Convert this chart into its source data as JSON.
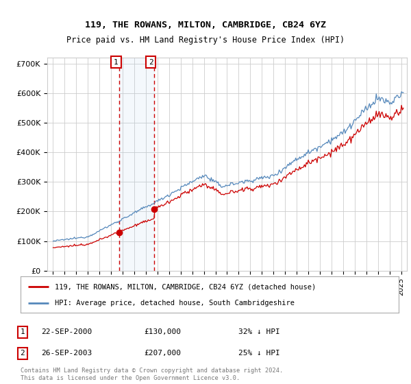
{
  "title1": "119, THE ROWANS, MILTON, CAMBRIDGE, CB24 6YZ",
  "title2": "Price paid vs. HM Land Registry's House Price Index (HPI)",
  "ylim": [
    0,
    720000
  ],
  "yticks": [
    0,
    100000,
    200000,
    300000,
    400000,
    500000,
    600000,
    700000
  ],
  "ytick_labels": [
    "£0",
    "£100K",
    "£200K",
    "£300K",
    "£400K",
    "£500K",
    "£600K",
    "£700K"
  ],
  "red_line_color": "#cc0000",
  "blue_line_color": "#5588bb",
  "bg_color": "#ffffff",
  "grid_color": "#cccccc",
  "sale1_year": 2000.72,
  "sale1_price": 130000,
  "sale2_year": 2003.73,
  "sale2_price": 207000,
  "legend1": "119, THE ROWANS, MILTON, CAMBRIDGE, CB24 6YZ (detached house)",
  "legend2": "HPI: Average price, detached house, South Cambridgeshire",
  "note1_num": "1",
  "note1_date": "22-SEP-2000",
  "note1_price": "£130,000",
  "note1_hpi": "32% ↓ HPI",
  "note2_num": "2",
  "note2_date": "26-SEP-2003",
  "note2_price": "£207,000",
  "note2_hpi": "25% ↓ HPI",
  "copyright": "Contains HM Land Registry data © Crown copyright and database right 2024.\nThis data is licensed under the Open Government Licence v3.0."
}
